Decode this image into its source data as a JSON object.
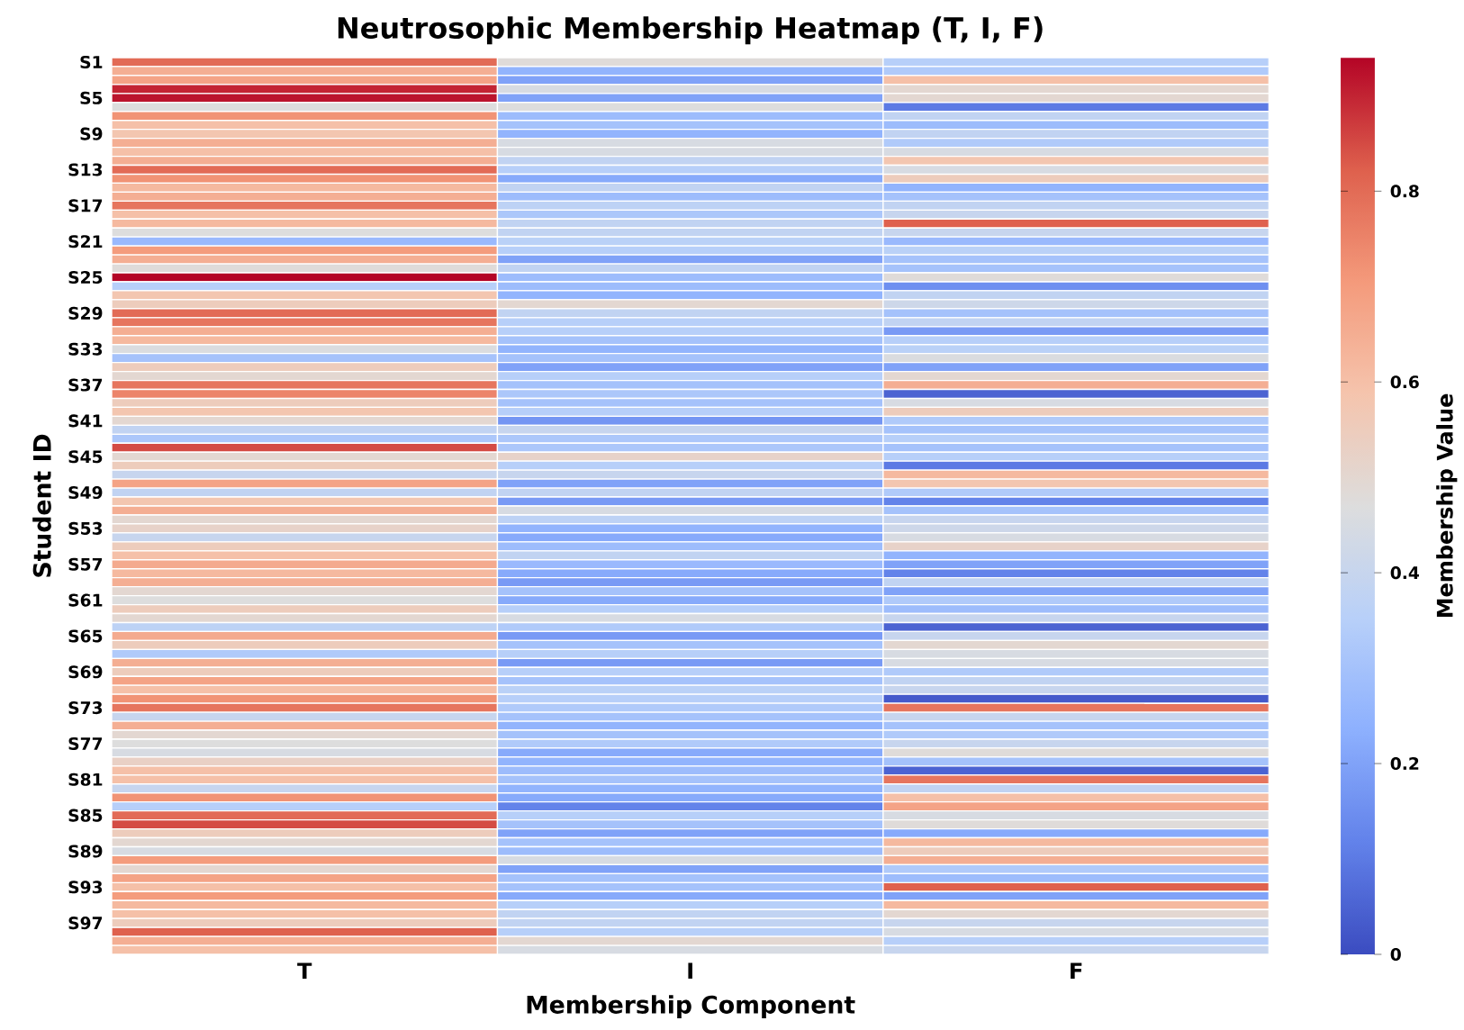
{
  "chart_data": {
    "type": "heatmap",
    "title": "Neutrosophic Membership Heatmap (T, I, F)",
    "xlabel": "Membership Component",
    "ylabel": "Student ID",
    "clabel": "Membership Value",
    "categories": [
      "T",
      "I",
      "F"
    ],
    "y_categories": [
      "S1",
      null,
      null,
      null,
      "S5",
      null,
      null,
      null,
      "S9",
      null,
      null,
      null,
      "S13",
      null,
      null,
      null,
      "S17",
      null,
      null,
      null,
      "S21",
      null,
      null,
      null,
      "S25",
      null,
      null,
      null,
      "S29",
      null,
      null,
      null,
      "S33",
      null,
      null,
      null,
      "S37",
      null,
      null,
      null,
      "S41",
      null,
      null,
      null,
      "S45",
      null,
      null,
      null,
      "S49",
      null,
      null,
      null,
      "S53",
      null,
      null,
      null,
      "S57",
      null,
      null,
      null,
      "S61",
      null,
      null,
      null,
      "S65",
      null,
      null,
      null,
      "S69",
      null,
      null,
      null,
      "S73",
      null,
      null,
      null,
      "S77",
      null,
      null,
      null,
      "S81",
      null,
      null,
      null,
      "S85",
      null,
      null,
      null,
      "S89",
      null,
      null,
      null,
      "S93",
      null,
      null,
      null,
      "S97",
      null,
      null,
      null
    ],
    "cells": [
      [
        0.8,
        0.48,
        0.35
      ],
      [
        0.65,
        0.25,
        0.33
      ],
      [
        0.68,
        0.2,
        0.6
      ],
      [
        0.9,
        0.45,
        0.5
      ],
      [
        0.92,
        0.2,
        0.5
      ],
      [
        0.47,
        0.47,
        0.1
      ],
      [
        0.72,
        0.28,
        0.38
      ],
      [
        0.6,
        0.3,
        0.28
      ],
      [
        0.58,
        0.25,
        0.38
      ],
      [
        0.65,
        0.45,
        0.33
      ],
      [
        0.6,
        0.45,
        0.45
      ],
      [
        0.65,
        0.38,
        0.58
      ],
      [
        0.8,
        0.35,
        0.45
      ],
      [
        0.72,
        0.22,
        0.55
      ],
      [
        0.62,
        0.38,
        0.25
      ],
      [
        0.65,
        0.28,
        0.3
      ],
      [
        0.78,
        0.37,
        0.38
      ],
      [
        0.6,
        0.32,
        0.4
      ],
      [
        0.62,
        0.38,
        0.82
      ],
      [
        0.47,
        0.38,
        0.4
      ],
      [
        0.27,
        0.36,
        0.27
      ],
      [
        0.7,
        0.35,
        0.36
      ],
      [
        0.65,
        0.2,
        0.3
      ],
      [
        0.48,
        0.38,
        0.3
      ],
      [
        0.94,
        0.28,
        0.48
      ],
      [
        0.35,
        0.28,
        0.15
      ],
      [
        0.58,
        0.25,
        0.38
      ],
      [
        0.55,
        0.5,
        0.42
      ],
      [
        0.8,
        0.38,
        0.3
      ],
      [
        0.78,
        0.35,
        0.38
      ],
      [
        0.65,
        0.35,
        0.18
      ],
      [
        0.62,
        0.3,
        0.35
      ],
      [
        0.46,
        0.25,
        0.36
      ],
      [
        0.3,
        0.3,
        0.46
      ],
      [
        0.55,
        0.2,
        0.2
      ],
      [
        0.5,
        0.35,
        0.5
      ],
      [
        0.78,
        0.3,
        0.65
      ],
      [
        0.75,
        0.32,
        0.05
      ],
      [
        0.55,
        0.3,
        0.45
      ],
      [
        0.58,
        0.35,
        0.55
      ],
      [
        0.5,
        0.17,
        0.33
      ],
      [
        0.38,
        0.4,
        0.3
      ],
      [
        0.32,
        0.32,
        0.35
      ],
      [
        0.85,
        0.32,
        0.3
      ],
      [
        0.5,
        0.52,
        0.35
      ],
      [
        0.55,
        0.35,
        0.1
      ],
      [
        0.4,
        0.4,
        0.62
      ],
      [
        0.68,
        0.2,
        0.58
      ],
      [
        0.38,
        0.38,
        0.33
      ],
      [
        0.58,
        0.18,
        0.12
      ],
      [
        0.65,
        0.45,
        0.3
      ],
      [
        0.5,
        0.37,
        0.4
      ],
      [
        0.52,
        0.25,
        0.42
      ],
      [
        0.4,
        0.22,
        0.45
      ],
      [
        0.55,
        0.28,
        0.52
      ],
      [
        0.6,
        0.38,
        0.25
      ],
      [
        0.66,
        0.27,
        0.2
      ],
      [
        0.62,
        0.22,
        0.12
      ],
      [
        0.65,
        0.18,
        0.38
      ],
      [
        0.5,
        0.3,
        0.2
      ],
      [
        0.47,
        0.22,
        0.33
      ],
      [
        0.55,
        0.35,
        0.28
      ],
      [
        0.5,
        0.45,
        0.4
      ],
      [
        0.37,
        0.33,
        0.05
      ],
      [
        0.66,
        0.18,
        0.4
      ],
      [
        0.55,
        0.3,
        0.5
      ],
      [
        0.33,
        0.35,
        0.45
      ],
      [
        0.65,
        0.18,
        0.45
      ],
      [
        0.55,
        0.35,
        0.33
      ],
      [
        0.68,
        0.3,
        0.38
      ],
      [
        0.6,
        0.36,
        0.4
      ],
      [
        0.72,
        0.35,
        0.03
      ],
      [
        0.78,
        0.33,
        0.78
      ],
      [
        0.4,
        0.3,
        0.4
      ],
      [
        0.65,
        0.25,
        0.3
      ],
      [
        0.5,
        0.3,
        0.33
      ],
      [
        0.47,
        0.33,
        0.4
      ],
      [
        0.45,
        0.22,
        0.48
      ],
      [
        0.53,
        0.25,
        0.3
      ],
      [
        0.6,
        0.28,
        0.05
      ],
      [
        0.6,
        0.3,
        0.78
      ],
      [
        0.4,
        0.25,
        0.38
      ],
      [
        0.72,
        0.22,
        0.6
      ],
      [
        0.35,
        0.12,
        0.68
      ],
      [
        0.8,
        0.35,
        0.45
      ],
      [
        0.85,
        0.3,
        0.48
      ],
      [
        0.55,
        0.2,
        0.22
      ],
      [
        0.5,
        0.3,
        0.62
      ],
      [
        0.45,
        0.28,
        0.55
      ],
      [
        0.7,
        0.45,
        0.65
      ],
      [
        0.5,
        0.2,
        0.33
      ],
      [
        0.68,
        0.3,
        0.28
      ],
      [
        0.6,
        0.3,
        0.82
      ],
      [
        0.7,
        0.22,
        0.2
      ],
      [
        0.62,
        0.35,
        0.62
      ],
      [
        0.6,
        0.38,
        0.5
      ],
      [
        0.55,
        0.38,
        0.4
      ],
      [
        0.82,
        0.35,
        0.45
      ],
      [
        0.65,
        0.5,
        0.35
      ],
      [
        0.6,
        0.45,
        0.4
      ]
    ],
    "clim": [
      0,
      0.94
    ],
    "cticks": [
      0,
      0.2,
      0.4,
      0.6,
      0.8
    ]
  }
}
